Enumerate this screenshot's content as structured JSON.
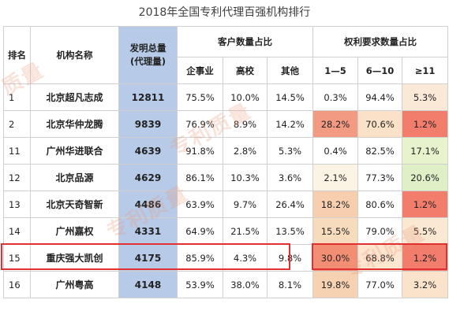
{
  "title": "2018年全国专利代理百强机构排行",
  "headers": {
    "rank": "排名",
    "org": "机构名称",
    "invention_line1": "发明总量",
    "invention_line2": "(代理量)",
    "client_group": "客户数量占比",
    "claims_group": "权利要求数量占比",
    "client_cols": [
      "企事业",
      "高校",
      "其他"
    ],
    "claims_cols": [
      "1—5",
      "6—10",
      "≥11"
    ]
  },
  "rows": [
    {
      "rank": "1",
      "org": "北京超凡志成",
      "inv": "12811",
      "c1": "75.5%",
      "c2": "10.0%",
      "c3": "14.5%",
      "k1": "0.3%",
      "k2": "94.4%",
      "k3": "5.3%"
    },
    {
      "rank": "2",
      "org": "北京华仲龙腾",
      "inv": "9839",
      "c1": "76.9%",
      "c2": "8.9%",
      "c3": "14.2%",
      "k1": "28.2%",
      "k2": "70.6%",
      "k3": "1.2%"
    },
    {
      "rank": "11",
      "org": "广州华进联合",
      "inv": "4639",
      "c1": "91.8%",
      "c2": "2.8%",
      "c3": "5.3%",
      "k1": "0.4%",
      "k2": "82.5%",
      "k3": "17.1%"
    },
    {
      "rank": "12",
      "org": "北京品源",
      "inv": "4629",
      "c1": "86.1%",
      "c2": "10.3%",
      "c3": "3.6%",
      "k1": "2.1%",
      "k2": "77.3%",
      "k3": "20.6%"
    },
    {
      "rank": "13",
      "org": "北京天奇智新",
      "inv": "4486",
      "c1": "63.9%",
      "c2": "9.7%",
      "c3": "26.4%",
      "k1": "18.2%",
      "k2": "80.6%",
      "k3": "1.2%"
    },
    {
      "rank": "14",
      "org": "广州嘉权",
      "inv": "4331",
      "c1": "64.9%",
      "c2": "21.5%",
      "c3": "13.5%",
      "k1": "15.5%",
      "k2": "79.0%",
      "k3": "5.5%"
    },
    {
      "rank": "15",
      "org": "重庆强大凯创",
      "inv": "4175",
      "c1": "85.9%",
      "c2": "4.3%",
      "c3": "9.8%",
      "k1": "30.0%",
      "k2": "68.8%",
      "k3": "1.2%"
    },
    {
      "rank": "16",
      "org": "广州粤高",
      "inv": "4148",
      "c1": "53.9%",
      "c2": "38.0%",
      "c3": "8.1%",
      "k1": "19.8%",
      "k2": "77.0%",
      "k3": "3.2%"
    }
  ],
  "colors": {
    "k1": [
      "#ffffff",
      "#f39a82",
      "#ffffff",
      "#fbf3e3",
      "#f7cfae",
      "#f6dcbc",
      "#f28e74",
      "#f6d2b2"
    ],
    "k2": [
      "#ffffff",
      "#fbe1c7",
      "#ffffff",
      "#ffffff",
      "#ffffff",
      "#ffffff",
      "#fce6d0",
      "#ffffff"
    ],
    "k3": [
      "#fbe9d8",
      "#f27d6c",
      "#e7f3cc",
      "#e0f0c6",
      "#f27d6c",
      "#fbe8d3",
      "#f27d6c",
      "#fbe3cb"
    ]
  },
  "highlight_rank": "15",
  "watermark": "专利质量"
}
